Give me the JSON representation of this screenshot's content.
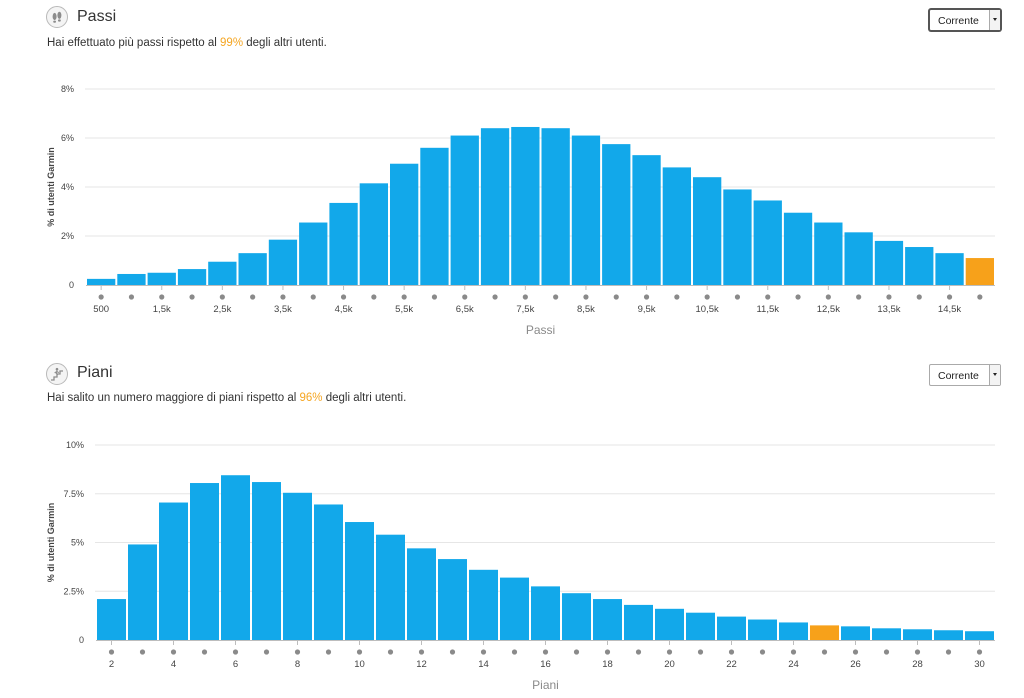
{
  "steps_section": {
    "title": "Passi",
    "icon": "footprints-icon",
    "subtitle_prefix": "Hai effettuato più passi rispetto al ",
    "subtitle_percent": "99%",
    "subtitle_suffix": " degli altri utenti.",
    "period_select": {
      "value": "Corrente"
    }
  },
  "floors_section": {
    "title": "Piani",
    "icon": "stairs-climber-icon",
    "subtitle_prefix": "Hai salito un numero maggiore di piani rispetto al ",
    "subtitle_percent": "96%",
    "subtitle_suffix": " degli altri utenti.",
    "period_select": {
      "value": "Corrente"
    }
  },
  "colors": {
    "bar": "#12a8ea",
    "highlight": "#f7a11a",
    "percent_text": "#f5a623",
    "grid": "#e6e6e6",
    "dot": "#8a8a8a"
  },
  "chart_data": [
    {
      "type": "bar",
      "xlabel": "Passi",
      "ylabel": "% di utenti Garmin",
      "ylim": [
        0,
        8
      ],
      "y_ticks": [
        {
          "value": 0,
          "label": "0"
        },
        {
          "value": 2,
          "label": "2%"
        },
        {
          "value": 4,
          "label": "4%"
        },
        {
          "value": 6,
          "label": "6%"
        },
        {
          "value": 8,
          "label": "8%"
        }
      ],
      "x_tick_labels": [
        "500",
        "1,5k",
        "2,5k",
        "3,5k",
        "4,5k",
        "5,5k",
        "6,5k",
        "7,5k",
        "8,5k",
        "9,5k",
        "10,5k",
        "11,5k",
        "12,5k",
        "13,5k",
        "14,5k"
      ],
      "x_tick_label_every": 2,
      "values": [
        0.25,
        0.45,
        0.5,
        0.65,
        0.95,
        1.3,
        1.85,
        2.55,
        3.35,
        4.15,
        4.95,
        5.6,
        6.1,
        6.4,
        6.45,
        6.4,
        6.1,
        5.75,
        5.3,
        4.8,
        4.4,
        3.9,
        3.45,
        2.95,
        2.55,
        2.15,
        1.8,
        1.55,
        1.3,
        1.1
      ],
      "highlight_index": 29,
      "grid": true
    },
    {
      "type": "bar",
      "xlabel": "Piani",
      "ylabel": "% di utenti Garmin",
      "ylim": [
        0,
        10
      ],
      "y_ticks": [
        {
          "value": 0,
          "label": "0"
        },
        {
          "value": 2.5,
          "label": "2.5%"
        },
        {
          "value": 5,
          "label": "5%"
        },
        {
          "value": 7.5,
          "label": "7.5%"
        },
        {
          "value": 10,
          "label": "10%"
        }
      ],
      "x_tick_labels": [
        "2",
        "4",
        "6",
        "8",
        "10",
        "12",
        "14",
        "16",
        "18",
        "20",
        "22",
        "24",
        "26",
        "28",
        "30"
      ],
      "x_tick_label_every": 2,
      "values": [
        2.1,
        4.9,
        7.05,
        8.05,
        8.45,
        8.1,
        7.55,
        6.95,
        6.05,
        5.4,
        4.7,
        4.15,
        3.6,
        3.2,
        2.75,
        2.4,
        2.1,
        1.8,
        1.6,
        1.4,
        1.2,
        1.05,
        0.9,
        0.75,
        0.7,
        0.6,
        0.55,
        0.5,
        0.45
      ],
      "highlight_index": 23,
      "grid": true
    }
  ]
}
